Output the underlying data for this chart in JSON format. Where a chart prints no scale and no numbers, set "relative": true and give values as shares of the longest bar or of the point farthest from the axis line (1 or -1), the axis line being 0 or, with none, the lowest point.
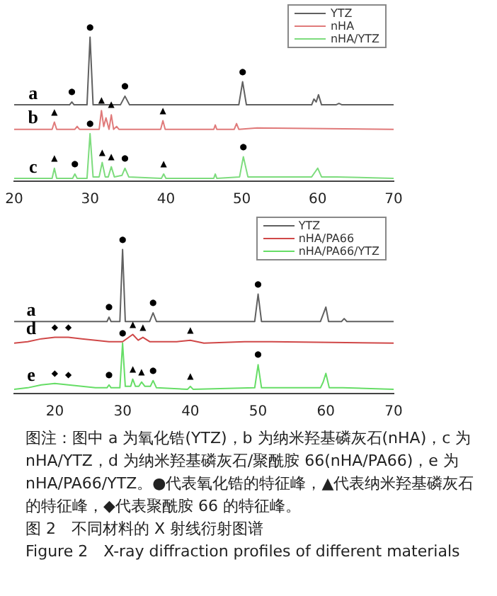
{
  "chart_data": [
    {
      "type": "line",
      "relative": true,
      "legend": "top right",
      "xlim": [
        20,
        70
      ],
      "xticks": [
        20,
        30,
        40,
        50,
        60,
        70
      ],
      "series": [
        {
          "name": "YTZ",
          "color": "#606060",
          "x": [
            20,
            27.3,
            27.6,
            27.9,
            29.6,
            30,
            30.4,
            34,
            34.6,
            35.2,
            49.6,
            50.1,
            50.6,
            59.2,
            59.5,
            59.8,
            60.1,
            60.5,
            62.4,
            62.8,
            63.2,
            70
          ],
          "values": [
            0.53,
            0.53,
            0.55,
            0.53,
            0.53,
            1,
            0.53,
            0.53,
            0.59,
            0.53,
            0.53,
            0.69,
            0.53,
            0.53,
            0.57,
            0.55,
            0.6,
            0.53,
            0.53,
            0.54,
            0.53,
            0.53
          ]
        },
        {
          "name": "nHA",
          "color": "#e07a7a",
          "x": [
            20,
            25,
            25.3,
            25.6,
            28,
            28.3,
            28.6,
            31.2,
            31.5,
            31.8,
            32.1,
            32.5,
            32.8,
            33.1,
            33.5,
            33.8,
            39.3,
            39.6,
            39.9,
            46.3,
            46.5,
            46.7,
            49,
            49.3,
            49.6,
            52,
            70
          ],
          "values": [
            0.36,
            0.36,
            0.41,
            0.36,
            0.36,
            0.38,
            0.36,
            0.36,
            0.49,
            0.38,
            0.44,
            0.36,
            0.46,
            0.36,
            0.38,
            0.36,
            0.36,
            0.42,
            0.36,
            0.36,
            0.39,
            0.36,
            0.36,
            0.4,
            0.36,
            0.37,
            0.36
          ]
        },
        {
          "name": "nHA/YTZ",
          "color": "#7ddc7d",
          "x": [
            20,
            25,
            25.3,
            25.6,
            27.7,
            28,
            28.3,
            29.6,
            30,
            30.4,
            31.2,
            31.6,
            32,
            32.4,
            32.8,
            33.2,
            34.2,
            34.6,
            35.1,
            39.4,
            39.7,
            40,
            46.3,
            46.5,
            46.7,
            49.7,
            50.2,
            50.8,
            59.2,
            59.6,
            60,
            60.5,
            62.5,
            70
          ],
          "values": [
            0.02,
            0.02,
            0.09,
            0.02,
            0.02,
            0.05,
            0.02,
            0.02,
            0.33,
            0.03,
            0.03,
            0.13,
            0.03,
            0.03,
            0.1,
            0.03,
            0.04,
            0.09,
            0.03,
            0.02,
            0.05,
            0.02,
            0.02,
            0.05,
            0.02,
            0.03,
            0.17,
            0.03,
            0.03,
            0.06,
            0.09,
            0.03,
            0.03,
            0.02
          ]
        }
      ],
      "annotations": [
        {
          "text": "a",
          "x": 22.5,
          "y": 0.53
        },
        {
          "text": "b",
          "x": 22.5,
          "y": 0.36
        },
        {
          "text": "c",
          "x": 22.5,
          "y": 0.02
        },
        {
          "text": "●",
          "x": 27.6,
          "y": 0.55
        },
        {
          "text": "●",
          "x": 30,
          "y": 1
        },
        {
          "text": "●",
          "x": 34.6,
          "y": 0.59
        },
        {
          "text": "●",
          "x": 50.1,
          "y": 0.69
        },
        {
          "text": "▲",
          "x": 25.3,
          "y": 0.41
        },
        {
          "text": "▲",
          "x": 31.5,
          "y": 0.49
        },
        {
          "text": "▲",
          "x": 32.8,
          "y": 0.46
        },
        {
          "text": "▲",
          "x": 39.6,
          "y": 0.42
        },
        {
          "text": "▲",
          "x": 25.3,
          "y": 0.09
        },
        {
          "text": "●",
          "x": 28,
          "y": 0.05
        },
        {
          "text": "●",
          "x": 30,
          "y": 0.33
        },
        {
          "text": "▲",
          "x": 31.6,
          "y": 0.13
        },
        {
          "text": "▲",
          "x": 32.8,
          "y": 0.1
        },
        {
          "text": "●",
          "x": 34.6,
          "y": 0.09
        },
        {
          "text": "▲",
          "x": 39.7,
          "y": 0.05
        },
        {
          "text": "●",
          "x": 50.2,
          "y": 0.17
        }
      ]
    },
    {
      "type": "line",
      "relative": true,
      "legend": "top right",
      "xlim": [
        14,
        70
      ],
      "xticks": [
        20,
        30,
        40,
        50,
        60,
        70
      ],
      "series": [
        {
          "name": "YTZ",
          "color": "#606060",
          "x": [
            14,
            27.7,
            28,
            28.3,
            29.6,
            30,
            30.4,
            34,
            34.5,
            35,
            49.5,
            50,
            50.5,
            59.2,
            59.6,
            60,
            60.4,
            62.3,
            62.7,
            63.1,
            70
          ],
          "values": [
            0.5,
            0.5,
            0.53,
            0.5,
            0.5,
            1,
            0.5,
            0.5,
            0.56,
            0.5,
            0.5,
            0.69,
            0.5,
            0.5,
            0.55,
            0.6,
            0.5,
            0.5,
            0.52,
            0.5,
            0.5
          ]
        },
        {
          "name": "nHA/PA66",
          "color": "#d04848",
          "x": [
            14,
            16,
            18,
            20,
            22,
            24,
            26,
            28,
            30,
            31.5,
            32.3,
            33,
            34,
            38,
            40,
            42,
            48,
            52,
            70
          ],
          "values": [
            0.35,
            0.36,
            0.38,
            0.39,
            0.39,
            0.38,
            0.37,
            0.36,
            0.36,
            0.41,
            0.37,
            0.39,
            0.36,
            0.36,
            0.37,
            0.35,
            0.36,
            0.36,
            0.35
          ]
        },
        {
          "name": "nHA/PA66/YTZ",
          "color": "#66dd66",
          "x": [
            14,
            16,
            18,
            20,
            22,
            24,
            26,
            27.7,
            28,
            28.3,
            29.6,
            30,
            30.4,
            31.2,
            31.5,
            31.9,
            32.4,
            32.8,
            33.3,
            34.1,
            34.5,
            35,
            39.6,
            40,
            40.4,
            49.5,
            50,
            50.5,
            59.2,
            59.6,
            60,
            60.5,
            62.5,
            70
          ],
          "values": [
            0.03,
            0.04,
            0.06,
            0.07,
            0.06,
            0.05,
            0.04,
            0.04,
            0.06,
            0.04,
            0.04,
            0.35,
            0.05,
            0.05,
            0.1,
            0.05,
            0.05,
            0.08,
            0.05,
            0.05,
            0.09,
            0.04,
            0.03,
            0.05,
            0.03,
            0.04,
            0.2,
            0.04,
            0.04,
            0.08,
            0.14,
            0.04,
            0.04,
            0.03
          ]
        }
      ],
      "annotations": [
        {
          "text": "a",
          "x": 16.5,
          "y": 0.5
        },
        {
          "text": "d",
          "x": 16.5,
          "y": 0.37
        },
        {
          "text": "e",
          "x": 16.5,
          "y": 0.05
        },
        {
          "text": "●",
          "x": 28,
          "y": 0.53
        },
        {
          "text": "●",
          "x": 30,
          "y": 1
        },
        {
          "text": "●",
          "x": 34.5,
          "y": 0.56
        },
        {
          "text": "●",
          "x": 50,
          "y": 0.69
        },
        {
          "text": "◆",
          "x": 20,
          "y": 0.39
        },
        {
          "text": "◆",
          "x": 22,
          "y": 0.39
        },
        {
          "text": "▲",
          "x": 31.5,
          "y": 0.41
        },
        {
          "text": "▲",
          "x": 33,
          "y": 0.39
        },
        {
          "text": "▲",
          "x": 40,
          "y": 0.37
        },
        {
          "text": "●",
          "x": 30,
          "y": 0.35
        },
        {
          "text": "●",
          "x": 50,
          "y": 0.2
        },
        {
          "text": "◆",
          "x": 20,
          "y": 0.07
        },
        {
          "text": "◆",
          "x": 22,
          "y": 0.06
        },
        {
          "text": "●",
          "x": 28,
          "y": 0.06
        },
        {
          "text": "▲",
          "x": 31.5,
          "y": 0.1
        },
        {
          "text": "▲",
          "x": 32.8,
          "y": 0.08
        },
        {
          "text": "●",
          "x": 34.5,
          "y": 0.09
        },
        {
          "text": "▲",
          "x": 40,
          "y": 0.05
        },
        "图注：图中 a 为氧化锆(YTZ)，b 为纳米羟基磷灰石(nHA)，c 为 nHA/YTZ，d 为纳米羟基磷灰石/聚酰胺 66(nHA/PA66)，e 为 nHA/PA66/YTZ。●代表氧化锆的特征峰，▲代表纳米羟基磷灰石的特征峰，◆代表聚酰胺 66 的特征峰。",
        "图 2　不同材料的 X 射线衍射图谱",
        "Figure 2　X-ray diffraction profiles of different materials"
      ]
    }
  ]
}
